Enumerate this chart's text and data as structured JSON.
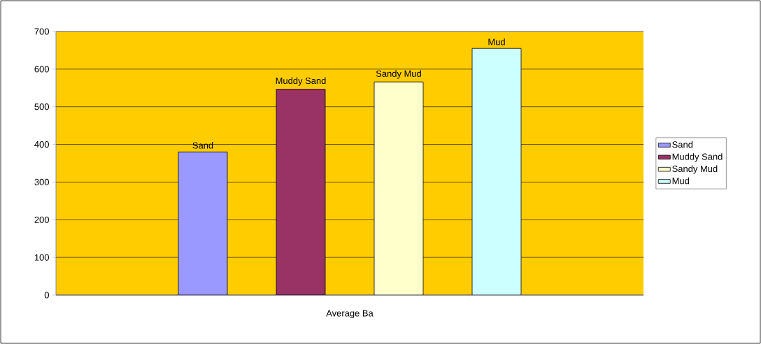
{
  "chart_data": {
    "type": "bar",
    "categories": [
      "Average Ba"
    ],
    "series": [
      {
        "name": "Sand",
        "color": "#9999ff",
        "values": [
          380
        ]
      },
      {
        "name": "Muddy Sand",
        "color": "#993366",
        "values": [
          547
        ]
      },
      {
        "name": "Sandy Mud",
        "color": "#ffffcc",
        "values": [
          566
        ]
      },
      {
        "name": "Mud",
        "color": "#ccffff",
        "values": [
          655
        ]
      }
    ],
    "ylim": [
      0,
      700
    ],
    "yticks": [
      0,
      100,
      200,
      300,
      400,
      500,
      600,
      700
    ],
    "grid": "y",
    "legend": "right"
  }
}
